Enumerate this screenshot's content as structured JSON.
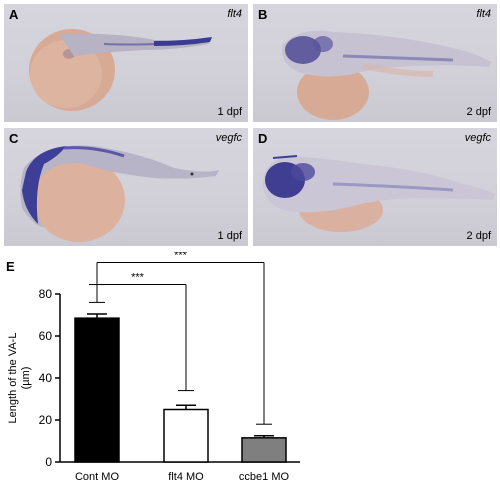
{
  "panels": [
    {
      "letter": "A",
      "gene": "flt4",
      "stage": "1 dpf"
    },
    {
      "letter": "B",
      "gene": "flt4",
      "stage": "2 dpf"
    },
    {
      "letter": "C",
      "gene": "vegfc",
      "stage": "1 dpf"
    },
    {
      "letter": "D",
      "gene": "vegfc",
      "stage": "2 dpf"
    }
  ],
  "panel_e_letter": "E",
  "chart_data": {
    "type": "bar",
    "categories": [
      "Cont MO",
      "flt4 MO",
      "ccbe1 MO"
    ],
    "values": [
      68.5,
      25,
      11.5
    ],
    "errors": [
      2.0,
      2.0,
      1.0
    ],
    "bar_colors": [
      "#000000",
      "#ffffff",
      "#7f7f7f"
    ],
    "ylabel_line1": "Length of the VA-L",
    "ylabel_line2": "(µm)",
    "ylim": [
      0,
      80
    ],
    "yticks": [
      0,
      20,
      40,
      60,
      80
    ],
    "significance": [
      {
        "from": "Cont MO",
        "to": "flt4 MO",
        "label": "***"
      },
      {
        "from": "Cont MO",
        "to": "ccbe1 MO",
        "label": "***"
      }
    ]
  }
}
